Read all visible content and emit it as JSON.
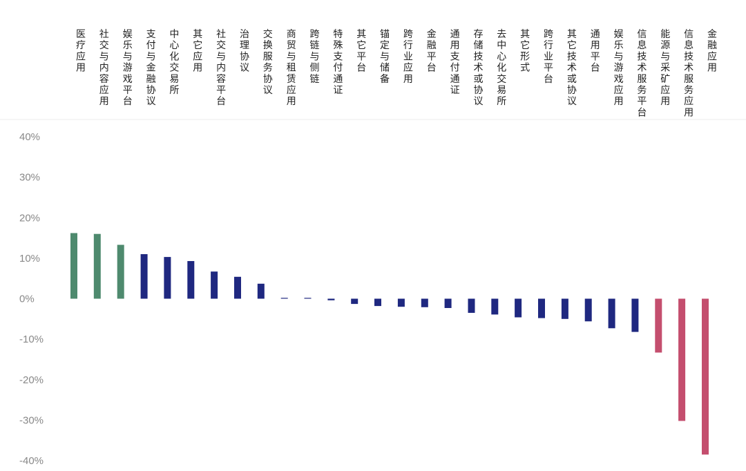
{
  "chart_data": {
    "type": "bar",
    "title": "",
    "xlabel": "",
    "ylabel": "",
    "ylim": [
      -40,
      40
    ],
    "y_ticks": [
      "40%",
      "30%",
      "20%",
      "10%",
      "0%",
      "-10%",
      "-20%",
      "-30%",
      "-40%"
    ],
    "y_tick_values": [
      40,
      30,
      20,
      10,
      0,
      -10,
      -20,
      -30,
      -40
    ],
    "grid": false,
    "categories": [
      "医疗应用",
      "社交与内容应用",
      "娱乐与游戏平台",
      "支付与金融协议",
      "中心化交易所",
      "其它应用",
      "社交与内容平台",
      "治理协议",
      "交换服务协议",
      "商贸与租赁应用",
      "跨链与侧链",
      "特殊支付通证",
      "其它平台",
      "锚定与储备",
      "跨行业应用",
      "金融平台",
      "通用支付通证",
      "存储技术或协议",
      "去中心化交易所",
      "其它形式",
      "跨行业平台",
      "其它技术或协议",
      "通用平台",
      "娱乐与游戏应用",
      "信息技术服务平台",
      "能源与采矿应用",
      "信息技术服务应用",
      "金融应用"
    ],
    "values": [
      16.2,
      16.0,
      13.3,
      11.0,
      10.3,
      9.3,
      6.7,
      5.4,
      3.7,
      0.2,
      0.2,
      -0.4,
      -1.3,
      -1.8,
      -2.0,
      -2.1,
      -2.3,
      -3.5,
      -3.9,
      -4.6,
      -4.8,
      -5.0,
      -5.6,
      -7.3,
      -8.2,
      -13.3,
      -30.2,
      -38.5
    ],
    "colors": {
      "positive_top": "#4e8a6e",
      "neutral": "#1f2880",
      "negative_bottom": "#c44e6e"
    }
  }
}
